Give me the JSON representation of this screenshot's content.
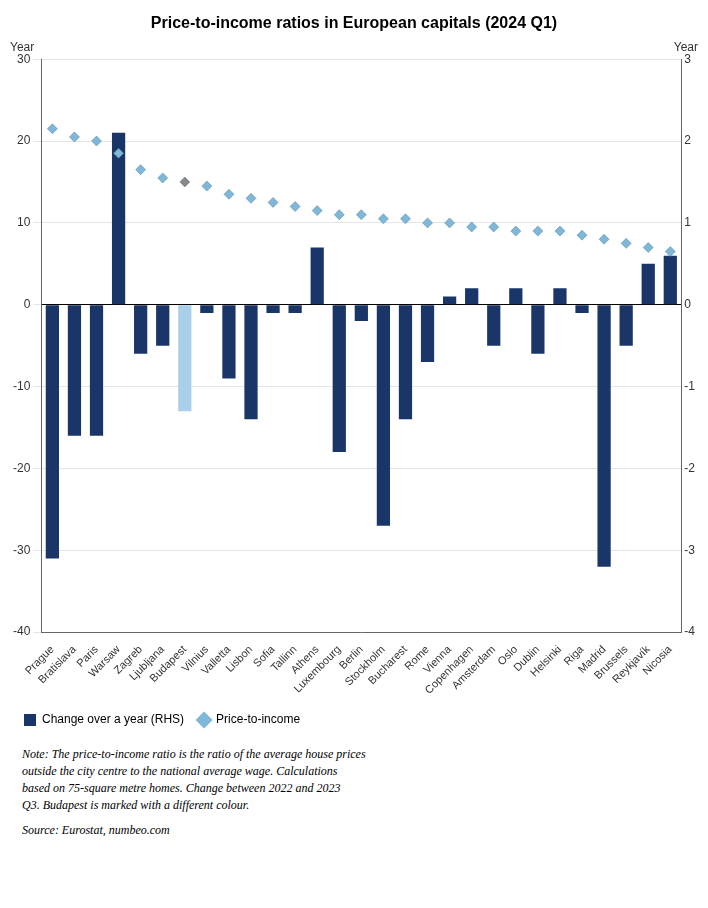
{
  "chart_data": {
    "type": "bar",
    "title": "Price-to-income ratios in European capitals (2024 Q1)",
    "categories": [
      "Prague",
      "Bratislava",
      "Paris",
      "Warsaw",
      "Zagreb",
      "Ljubljana",
      "Budapest",
      "Vilnius",
      "Valletta",
      "Lisbon",
      "Sofia",
      "Tallinn",
      "Athens",
      "Luxembourg",
      "Berlin",
      "Stockholm",
      "Bucharest",
      "Rome",
      "Vienna",
      "Copenhagen",
      "Amsterdam",
      "Oslo",
      "Dublin",
      "Helsinki",
      "Riga",
      "Madrid",
      "Brussels",
      "Reykjavík",
      "Nicosia"
    ],
    "series": [
      {
        "name": "Change over a year (RHS)",
        "type": "bar",
        "axis": "y2",
        "colors": [
          "#1a3668",
          "#1a3668",
          "#1a3668",
          "#1a3668",
          "#1a3668",
          "#1a3668",
          "#a8d0e8",
          "#1a3668",
          "#1a3668",
          "#1a3668",
          "#1a3668",
          "#1a3668",
          "#1a3668",
          "#1a3668",
          "#1a3668",
          "#1a3668",
          "#1a3668",
          "#1a3668",
          "#1a3668",
          "#1a3668",
          "#1a3668",
          "#1a3668",
          "#1a3668",
          "#1a3668",
          "#1a3668",
          "#1a3668",
          "#1a3668",
          "#1a3668",
          "#1a3668"
        ],
        "values": [
          -3.1,
          -1.6,
          -1.6,
          2.1,
          -0.6,
          -0.5,
          -1.3,
          -0.1,
          -0.9,
          -1.4,
          -0.1,
          -0.1,
          0.7,
          -1.8,
          -0.2,
          -2.7,
          -1.4,
          -0.7,
          0.1,
          0.2,
          -0.5,
          0.2,
          -0.6,
          0.2,
          -0.1,
          -3.2,
          -0.5,
          0.5,
          0.6
        ]
      },
      {
        "name": "Price-to-income",
        "type": "scatter",
        "marker": "diamond",
        "colors": [
          "#7db8d8",
          "#7db8d8",
          "#7db8d8",
          "#7db8d8",
          "#7db8d8",
          "#7db8d8",
          "#888888",
          "#7db8d8",
          "#7db8d8",
          "#7db8d8",
          "#7db8d8",
          "#7db8d8",
          "#7db8d8",
          "#7db8d8",
          "#7db8d8",
          "#7db8d8",
          "#7db8d8",
          "#7db8d8",
          "#7db8d8",
          "#7db8d8",
          "#7db8d8",
          "#7db8d8",
          "#7db8d8",
          "#7db8d8",
          "#7db8d8",
          "#7db8d8",
          "#7db8d8",
          "#7db8d8",
          "#7db8d8"
        ],
        "values": [
          21.5,
          20.5,
          20.0,
          18.5,
          16.5,
          15.5,
          15.0,
          14.5,
          13.5,
          13.0,
          12.5,
          12.0,
          11.5,
          11.0,
          11.0,
          10.5,
          10.5,
          10.0,
          10.0,
          9.5,
          9.5,
          9.0,
          9.0,
          9.0,
          8.5,
          8.0,
          7.5,
          7.0,
          6.5
        ]
      }
    ],
    "ylabel": "Year",
    "y2label": "Year",
    "ylim": [
      -40,
      30
    ],
    "yticks": [
      -40,
      -30,
      -20,
      -10,
      0,
      10,
      20,
      30
    ],
    "y2lim": [
      -4,
      3
    ],
    "y2ticks": [
      -4,
      -3,
      -2,
      -1,
      0,
      1,
      2,
      3
    ],
    "grid": true,
    "legend": "lower left",
    "notes": [
      "Note: The price-to-income ratio is the ratio of the average house prices",
      "outside the city centre to the national average wage. Calculations",
      "based on 75-square metre homes. Change between 2022 and 2023",
      "Q3. Budapest is marked with a different colour."
    ],
    "source": "Source: Eurostat, numbeo.com"
  }
}
